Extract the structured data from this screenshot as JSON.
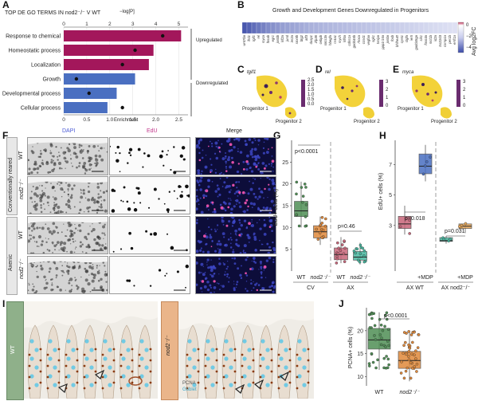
{
  "panel_labels": [
    "A",
    "B",
    "C",
    "D",
    "E",
    "F",
    "G",
    "H",
    "I",
    "J"
  ],
  "panelA": {
    "title": "TOP DE GO TERMS IN nod2⁻/⁻ V WT",
    "top_axis_label": "−log[P]",
    "xlabel": "Enrichment",
    "bracket_up": "Upregulated",
    "bracket_down": "Downregulated"
  },
  "panelB": {
    "title": "Growth and Development Genes Downregulated in Progenitors",
    "legend_title": "Avg log2FC",
    "legend_ticks": [
      "0",
      "−2",
      "−4"
    ]
  },
  "panelC": {
    "gene": "tgif1",
    "ticks": [
      "2.5",
      "2.0",
      "1.5",
      "1.0",
      "0.5",
      "0.0"
    ],
    "label1": "Progenitor 1",
    "label2": "Progenitor 2"
  },
  "panelD": {
    "gene": "rel",
    "ticks": [
      "3",
      "2",
      "1",
      "0"
    ],
    "label1": "Progenitor 1",
    "label2": "Progenitor 2"
  },
  "panelE": {
    "gene": "myca",
    "ticks": [
      "3",
      "2",
      "1",
      "0"
    ],
    "label1": "Progenitor 1",
    "label2": "Progenitor 2"
  },
  "panelF": {
    "col_dapi": "DAPI",
    "col_edu": "EdU",
    "col_merge": "Merge",
    "group_conv": "Conventionally reared",
    "group_axenic": "Axenic",
    "row_wt": "WT",
    "row_nod2": "nod2⁻/⁻"
  },
  "panelI": {
    "row_wt": "WT",
    "row_nod2": "nod2⁻/⁻",
    "stain1": "PCNA",
    "stain2": "Goblet"
  },
  "chart_data": [
    {
      "panel": "A",
      "type": "bar",
      "categories": [
        "Response to chemical",
        "Homeostatic process",
        "Localization",
        "Growth",
        "Developmental process",
        "Cellular process"
      ],
      "series": [
        {
          "name": "Enrichment",
          "values": [
            2.55,
            1.95,
            1.85,
            1.55,
            1.15,
            0.95
          ]
        },
        {
          "name": "−log[P]",
          "values": [
            4.3,
            3.1,
            2.55,
            0.55,
            1.1,
            2.55
          ]
        }
      ],
      "groups": [
        "Upregulated",
        "Upregulated",
        "Upregulated",
        "Downregulated",
        "Downregulated",
        "Downregulated"
      ],
      "colors": {
        "Upregulated": "#a3175b",
        "Downregulated": "#4a6fc1"
      },
      "xlabel": "Enrichment",
      "xlim": [
        0,
        2.7
      ],
      "xticks": [
        0,
        0.5,
        1.0,
        1.5,
        2.0,
        2.5
      ],
      "top_ticks": [
        0,
        1,
        2,
        3,
        4,
        5
      ],
      "top_lim": [
        0,
        5.4
      ]
    },
    {
      "panel": "B",
      "type": "heatmap",
      "genes": [
        "wnt7ba",
        "ifrd1",
        "tgif1",
        "rel",
        "myca",
        "fosab",
        "egr1",
        "junbb",
        "klf2a",
        "jund",
        "ier2a",
        "sox9b",
        "btg2",
        "atf3",
        "dusp1",
        "zfp36",
        "cebpb",
        "socs3a",
        "hbegfa",
        "nr4a1",
        "mych",
        "klf6a",
        "cdkn1a",
        "gadd45b",
        "rhoca",
        "ccnd1",
        "vegfaa",
        "sgk1",
        "txnipa",
        "ppp1r15a",
        "junba",
        "fosb",
        "bhlhe40",
        "cyr61",
        "ctgfa",
        "ier5",
        "gadd45ga",
        "sik1",
        "foxo3a",
        "mcl1b",
        "id2a",
        "tsc22d3",
        "csrnp1a",
        "per1b",
        "errfi1a"
      ],
      "values": [
        -4.6,
        -4.3,
        -3.9,
        -3.6,
        -3.3,
        -3.0,
        -2.8,
        -2.6,
        -2.4,
        -2.3,
        -2.2,
        -2.1,
        -2.0,
        -1.9,
        -1.8,
        -1.75,
        -1.7,
        -1.65,
        -1.6,
        -1.55,
        -1.5,
        -1.45,
        -1.4,
        -1.35,
        -1.3,
        -1.25,
        -1.2,
        -1.15,
        -1.1,
        -1.05,
        -1.0,
        -0.95,
        -0.9,
        -0.85,
        -0.8,
        -0.75,
        -0.7,
        -0.65,
        -0.6,
        -0.55,
        -0.5,
        -0.45,
        -0.4,
        -0.35,
        -0.3
      ],
      "legend_title": "Avg log2FC",
      "range": [
        -5,
        0.6
      ]
    },
    {
      "panel": "G",
      "type": "box",
      "categories": [
        "WT",
        "nod2⁻/⁻",
        "WT",
        "nod2⁻/⁻"
      ],
      "groups": [
        "CV",
        "AX"
      ],
      "ylabel": "EdU+ cells (%)",
      "ylim": [
        0,
        30
      ],
      "yticks": [
        5,
        10,
        15,
        20,
        25
      ],
      "colors": [
        "#4f8f55",
        "#e0893a",
        "#c8667a",
        "#48b8a0"
      ],
      "boxes": [
        {
          "min": 10,
          "q1": 12.5,
          "median": 13.8,
          "q3": 16,
          "max": 20.5
        },
        {
          "min": 6,
          "q1": 7.6,
          "median": 9,
          "q3": 10.4,
          "max": 12.5
        },
        {
          "min": 1.8,
          "q1": 2.6,
          "median": 3.8,
          "q3": 5.3,
          "max": 7.8
        },
        {
          "min": 1.5,
          "q1": 2.5,
          "median": 3.2,
          "q3": 4.5,
          "max": 6.5
        }
      ],
      "annotations": [
        "p<0.0001",
        "p=0.46"
      ]
    },
    {
      "panel": "H",
      "type": "box",
      "categories": [
        "",
        "+MDP",
        "",
        "+MDP"
      ],
      "groups": [
        "AX WT",
        "AX nod2⁻/⁻"
      ],
      "ylabel": "EdU+ cells (%)",
      "ylim": [
        0,
        8.6
      ],
      "yticks": [
        3,
        5,
        7
      ],
      "colors": [
        "#c8667a",
        "#4a6fc1",
        "#48b8a0",
        "#e8a85a"
      ],
      "boxes": [
        {
          "min": 2.4,
          "q1": 2.8,
          "median": 3.1,
          "q3": 3.6,
          "max": 4.3
        },
        {
          "min": 5.9,
          "q1": 6.4,
          "median": 6.9,
          "q3": 7.7,
          "max": 8.3
        },
        {
          "min": 1.8,
          "q1": 1.95,
          "median": 2.0,
          "q3": 2.2,
          "max": 2.3
        },
        {
          "min": 2.5,
          "q1": 2.8,
          "median": 2.95,
          "q3": 3.1,
          "max": 3.2
        }
      ],
      "annotations": [
        "p=0.018",
        "p=0.031"
      ]
    },
    {
      "panel": "J",
      "type": "box",
      "categories": [
        "WT",
        "nod2⁻/⁻"
      ],
      "ylabel": "PCNA+ cells (%)",
      "ylim": [
        8,
        25
      ],
      "yticks": [
        10,
        15,
        20
      ],
      "colors": [
        "#4f8f55",
        "#e0893a"
      ],
      "boxes": [
        {
          "min": 11.5,
          "q1": 16,
          "median": 18,
          "q3": 20.5,
          "max": 24
        },
        {
          "min": 9,
          "q1": 11.8,
          "median": 13.5,
          "q3": 15.5,
          "max": 20
        }
      ],
      "annotations": [
        "p<0.0001"
      ]
    }
  ]
}
